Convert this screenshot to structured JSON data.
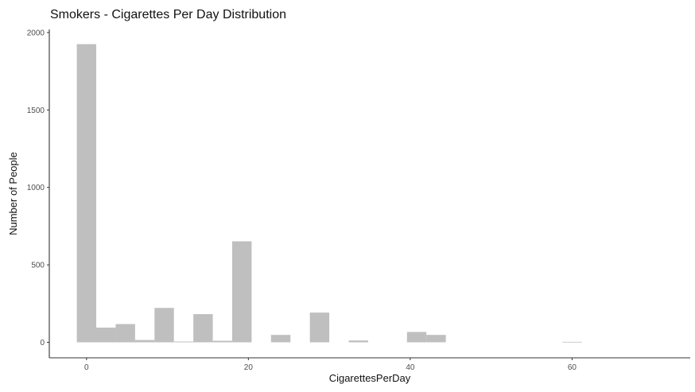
{
  "chart_data": {
    "type": "bar",
    "title": "Smokers - Cigarettes Per Day Distribution",
    "xlabel": "CigarettesPerDay",
    "ylabel": "Number of People",
    "xlim": [
      -4.6,
      74.6
    ],
    "ylim": [
      -100,
      2020
    ],
    "x_ticks": [
      0,
      20,
      40,
      60
    ],
    "y_ticks": [
      0,
      500,
      1000,
      1500,
      2000
    ],
    "bin_width": 2.4,
    "bars": [
      {
        "x": 0,
        "y": 1925
      },
      {
        "x": 2.4,
        "y": 95
      },
      {
        "x": 4.8,
        "y": 118
      },
      {
        "x": 7.2,
        "y": 15
      },
      {
        "x": 9.6,
        "y": 222
      },
      {
        "x": 12,
        "y": 5
      },
      {
        "x": 14.4,
        "y": 182
      },
      {
        "x": 16.8,
        "y": 10
      },
      {
        "x": 19.2,
        "y": 652
      },
      {
        "x": 24,
        "y": 48
      },
      {
        "x": 28.8,
        "y": 192
      },
      {
        "x": 33.6,
        "y": 12
      },
      {
        "x": 40.8,
        "y": 67
      },
      {
        "x": 43.2,
        "y": 48
      },
      {
        "x": 60,
        "y": 3
      }
    ],
    "bar_color": "#bfbfbf",
    "grid": false,
    "legend": "none"
  }
}
